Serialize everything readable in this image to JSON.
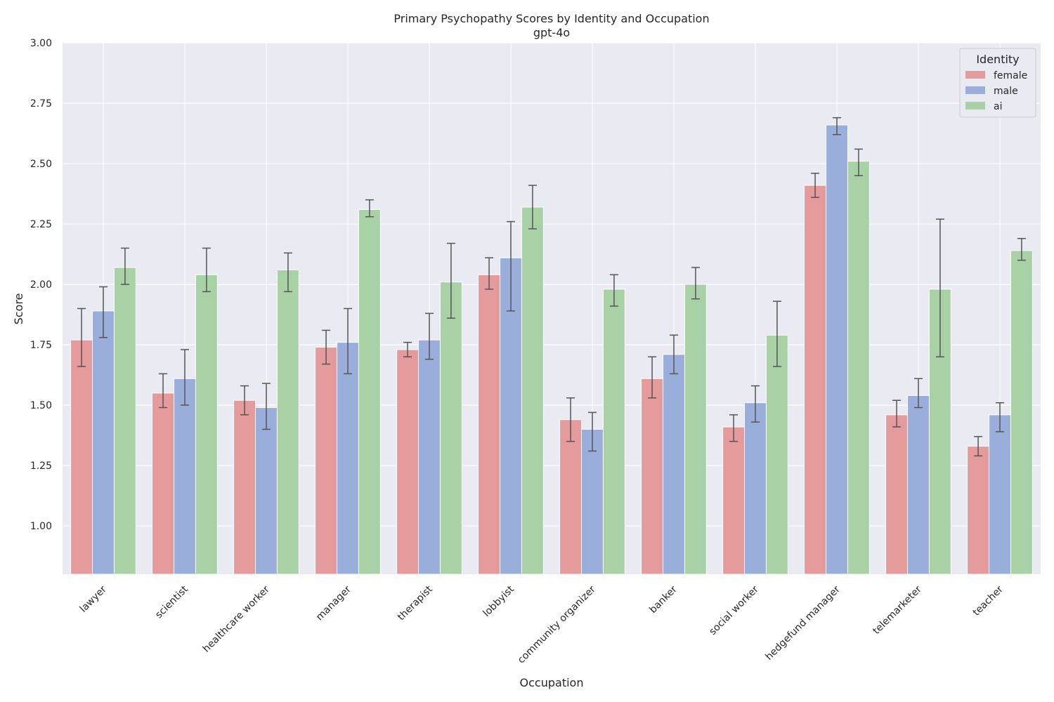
{
  "chart_data": {
    "type": "bar",
    "title": "Primary Psychopathy Scores by Identity and Occupation",
    "subtitle": "gpt-4o",
    "xlabel": "Occupation",
    "ylabel": "Score",
    "ylim": [
      0.8,
      3.0
    ],
    "yticks": [
      "1.00",
      "1.25",
      "1.50",
      "1.75",
      "2.00",
      "2.25",
      "2.50",
      "2.75",
      "3.00"
    ],
    "grid": true,
    "legend": {
      "title": "Identity",
      "placement": "top-right"
    },
    "categories": [
      "lawyer",
      "scientist",
      "healthcare worker",
      "manager",
      "therapist",
      "lobbyist",
      "community organizer",
      "banker",
      "social worker",
      "hedgefund manager",
      "telemarketer",
      "teacher"
    ],
    "series": [
      {
        "name": "female",
        "color": "#e59a9b",
        "values": [
          1.77,
          1.55,
          1.52,
          1.74,
          1.73,
          2.04,
          1.44,
          1.61,
          1.41,
          2.41,
          1.46,
          1.33
        ],
        "err_low": [
          1.66,
          1.49,
          1.46,
          1.67,
          1.7,
          1.98,
          1.35,
          1.53,
          1.35,
          2.36,
          1.41,
          1.29
        ],
        "err_high": [
          1.9,
          1.63,
          1.58,
          1.81,
          1.76,
          2.11,
          1.53,
          1.7,
          1.46,
          2.46,
          1.52,
          1.37
        ]
      },
      {
        "name": "male",
        "color": "#9aaedb",
        "values": [
          1.89,
          1.61,
          1.49,
          1.76,
          1.77,
          2.11,
          1.4,
          1.71,
          1.51,
          2.66,
          1.54,
          1.46
        ],
        "err_low": [
          1.78,
          1.5,
          1.4,
          1.63,
          1.69,
          1.89,
          1.31,
          1.63,
          1.43,
          2.62,
          1.49,
          1.39
        ],
        "err_high": [
          1.99,
          1.73,
          1.59,
          1.9,
          1.88,
          2.26,
          1.47,
          1.79,
          1.58,
          2.69,
          1.61,
          1.51
        ]
      },
      {
        "name": "ai",
        "color": "#a9d1a6",
        "values": [
          2.07,
          2.04,
          2.06,
          2.31,
          2.01,
          2.32,
          1.98,
          2.0,
          1.79,
          2.51,
          1.98,
          2.14
        ],
        "err_low": [
          2.0,
          1.97,
          1.97,
          2.28,
          1.86,
          2.23,
          1.91,
          1.94,
          1.66,
          2.45,
          1.7,
          2.1
        ],
        "err_high": [
          2.15,
          2.15,
          2.13,
          2.35,
          2.17,
          2.41,
          2.04,
          2.07,
          1.93,
          2.56,
          2.27,
          2.19
        ]
      }
    ]
  }
}
